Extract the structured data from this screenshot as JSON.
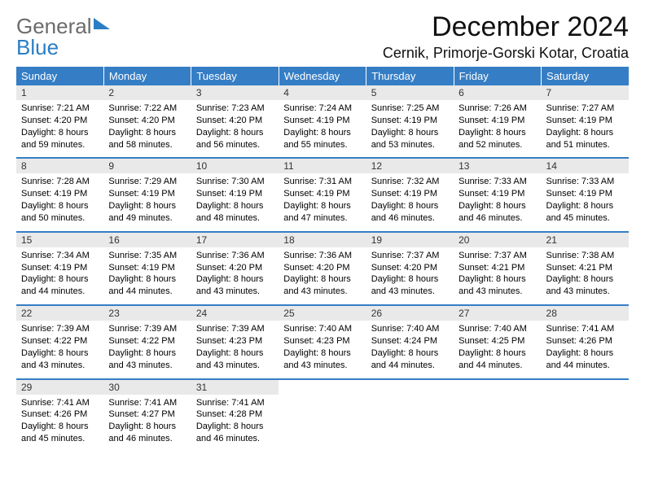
{
  "brand": {
    "name1": "General",
    "name2": "Blue"
  },
  "title": "December 2024",
  "location": "Cernik, Primorje-Gorski Kotar, Croatia",
  "colors": {
    "accent": "#357ec5",
    "band": "#e9e9e9"
  },
  "dow": [
    "Sunday",
    "Monday",
    "Tuesday",
    "Wednesday",
    "Thursday",
    "Friday",
    "Saturday"
  ],
  "weeks": [
    [
      {
        "n": "1",
        "sr": "7:21 AM",
        "ss": "4:20 PM",
        "d1": "8 hours",
        "d2": "and 59 minutes."
      },
      {
        "n": "2",
        "sr": "7:22 AM",
        "ss": "4:20 PM",
        "d1": "8 hours",
        "d2": "and 58 minutes."
      },
      {
        "n": "3",
        "sr": "7:23 AM",
        "ss": "4:20 PM",
        "d1": "8 hours",
        "d2": "and 56 minutes."
      },
      {
        "n": "4",
        "sr": "7:24 AM",
        "ss": "4:19 PM",
        "d1": "8 hours",
        "d2": "and 55 minutes."
      },
      {
        "n": "5",
        "sr": "7:25 AM",
        "ss": "4:19 PM",
        "d1": "8 hours",
        "d2": "and 53 minutes."
      },
      {
        "n": "6",
        "sr": "7:26 AM",
        "ss": "4:19 PM",
        "d1": "8 hours",
        "d2": "and 52 minutes."
      },
      {
        "n": "7",
        "sr": "7:27 AM",
        "ss": "4:19 PM",
        "d1": "8 hours",
        "d2": "and 51 minutes."
      }
    ],
    [
      {
        "n": "8",
        "sr": "7:28 AM",
        "ss": "4:19 PM",
        "d1": "8 hours",
        "d2": "and 50 minutes."
      },
      {
        "n": "9",
        "sr": "7:29 AM",
        "ss": "4:19 PM",
        "d1": "8 hours",
        "d2": "and 49 minutes."
      },
      {
        "n": "10",
        "sr": "7:30 AM",
        "ss": "4:19 PM",
        "d1": "8 hours",
        "d2": "and 48 minutes."
      },
      {
        "n": "11",
        "sr": "7:31 AM",
        "ss": "4:19 PM",
        "d1": "8 hours",
        "d2": "and 47 minutes."
      },
      {
        "n": "12",
        "sr": "7:32 AM",
        "ss": "4:19 PM",
        "d1": "8 hours",
        "d2": "and 46 minutes."
      },
      {
        "n": "13",
        "sr": "7:33 AM",
        "ss": "4:19 PM",
        "d1": "8 hours",
        "d2": "and 46 minutes."
      },
      {
        "n": "14",
        "sr": "7:33 AM",
        "ss": "4:19 PM",
        "d1": "8 hours",
        "d2": "and 45 minutes."
      }
    ],
    [
      {
        "n": "15",
        "sr": "7:34 AM",
        "ss": "4:19 PM",
        "d1": "8 hours",
        "d2": "and 44 minutes."
      },
      {
        "n": "16",
        "sr": "7:35 AM",
        "ss": "4:19 PM",
        "d1": "8 hours",
        "d2": "and 44 minutes."
      },
      {
        "n": "17",
        "sr": "7:36 AM",
        "ss": "4:20 PM",
        "d1": "8 hours",
        "d2": "and 43 minutes."
      },
      {
        "n": "18",
        "sr": "7:36 AM",
        "ss": "4:20 PM",
        "d1": "8 hours",
        "d2": "and 43 minutes."
      },
      {
        "n": "19",
        "sr": "7:37 AM",
        "ss": "4:20 PM",
        "d1": "8 hours",
        "d2": "and 43 minutes."
      },
      {
        "n": "20",
        "sr": "7:37 AM",
        "ss": "4:21 PM",
        "d1": "8 hours",
        "d2": "and 43 minutes."
      },
      {
        "n": "21",
        "sr": "7:38 AM",
        "ss": "4:21 PM",
        "d1": "8 hours",
        "d2": "and 43 minutes."
      }
    ],
    [
      {
        "n": "22",
        "sr": "7:39 AM",
        "ss": "4:22 PM",
        "d1": "8 hours",
        "d2": "and 43 minutes."
      },
      {
        "n": "23",
        "sr": "7:39 AM",
        "ss": "4:22 PM",
        "d1": "8 hours",
        "d2": "and 43 minutes."
      },
      {
        "n": "24",
        "sr": "7:39 AM",
        "ss": "4:23 PM",
        "d1": "8 hours",
        "d2": "and 43 minutes."
      },
      {
        "n": "25",
        "sr": "7:40 AM",
        "ss": "4:23 PM",
        "d1": "8 hours",
        "d2": "and 43 minutes."
      },
      {
        "n": "26",
        "sr": "7:40 AM",
        "ss": "4:24 PM",
        "d1": "8 hours",
        "d2": "and 44 minutes."
      },
      {
        "n": "27",
        "sr": "7:40 AM",
        "ss": "4:25 PM",
        "d1": "8 hours",
        "d2": "and 44 minutes."
      },
      {
        "n": "28",
        "sr": "7:41 AM",
        "ss": "4:26 PM",
        "d1": "8 hours",
        "d2": "and 44 minutes."
      }
    ],
    [
      {
        "n": "29",
        "sr": "7:41 AM",
        "ss": "4:26 PM",
        "d1": "8 hours",
        "d2": "and 45 minutes."
      },
      {
        "n": "30",
        "sr": "7:41 AM",
        "ss": "4:27 PM",
        "d1": "8 hours",
        "d2": "and 46 minutes."
      },
      {
        "n": "31",
        "sr": "7:41 AM",
        "ss": "4:28 PM",
        "d1": "8 hours",
        "d2": "and 46 minutes."
      },
      null,
      null,
      null,
      null
    ]
  ],
  "labels": {
    "sunrise": "Sunrise: ",
    "sunset": "Sunset: ",
    "daylight": "Daylight: "
  }
}
